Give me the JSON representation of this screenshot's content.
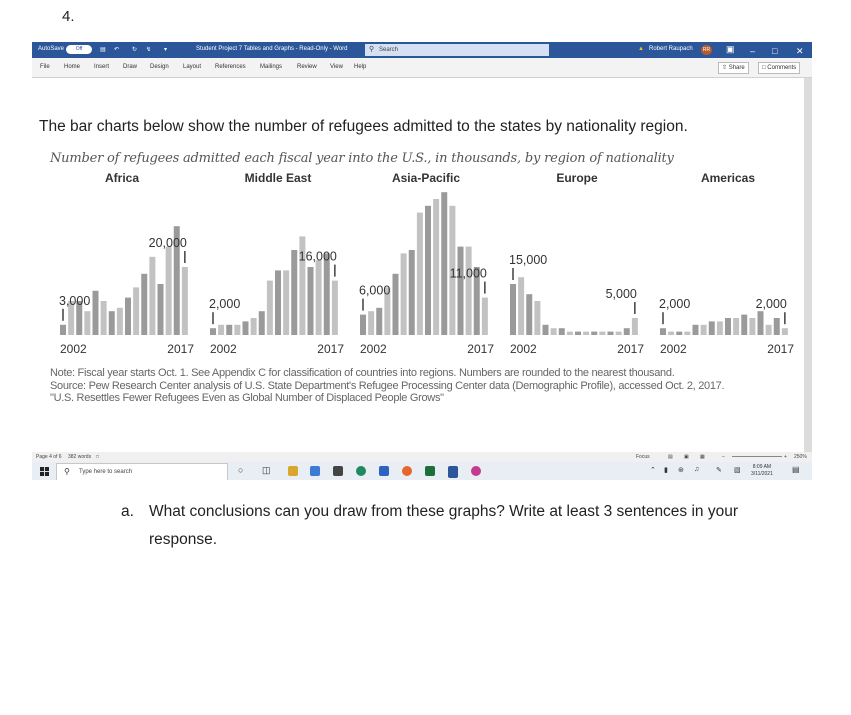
{
  "question_number": "4.",
  "word_window": {
    "title_bar": {
      "autosave_label": "AutoSave",
      "autosave_state": "Off",
      "document_title": "Student Project 7 Tables and Graphs  -  Read-Only  -  Word",
      "search_placeholder": "Search",
      "user_name": "Robert Raupach",
      "user_initials": "RR",
      "accent_color": "#2b579a"
    },
    "ribbon_tabs": [
      "File",
      "Home",
      "Insert",
      "Draw",
      "Design",
      "Layout",
      "References",
      "Mailings",
      "Review",
      "View",
      "Help"
    ],
    "share_label": "Share",
    "comments_label": "Comments",
    "document": {
      "lead_sentence": "The bar charts below show the number of refugees admitted to the states by nationality region.",
      "figure_title": "Number of refugees admitted each fiscal year into the U.S., in thousands, by region of nationality",
      "note": "Note: Fiscal year starts Oct. 1. See Appendix C for classification of countries into regions. Numbers are rounded to the nearest thousand.",
      "source": "Source: Pew Research Center analysis of U.S. State Department's Refugee Processing Center data (Demographic Profile), accessed Oct. 2, 2017.",
      "caption": "\"U.S. Resettles Fewer Refugees Even as Global Number of Displaced People Grows\""
    },
    "status_bar": {
      "page": "Page 4 of 6",
      "words": "382 words",
      "focus_label": "Focus",
      "zoom": "250%"
    },
    "taskbar": {
      "search_placeholder": "Type here to search",
      "time": "8:09 AM",
      "date": "3/11/2021"
    }
  },
  "chart_data": {
    "type": "bar",
    "title": "Number of refugees admitted each fiscal year into the U.S., in thousands, by region of nationality",
    "x_range": [
      "2002",
      "2017"
    ],
    "panels": [
      {
        "region": "Africa",
        "start_label": "3,000",
        "end_label": "20,000",
        "values": [
          3,
          10,
          10,
          7,
          13,
          10,
          7,
          8,
          11,
          14,
          18,
          23,
          15,
          26,
          32,
          20
        ]
      },
      {
        "region": "Middle East",
        "start_label": "2,000",
        "end_label": "16,000",
        "values": [
          2,
          3,
          3,
          3,
          4,
          5,
          7,
          16,
          19,
          19,
          25,
          29,
          20,
          22,
          24,
          16
        ]
      },
      {
        "region": "Asia-Pacific",
        "start_label": "6,000",
        "end_label": "11,000",
        "values": [
          6,
          7,
          8,
          14,
          18,
          24,
          25,
          36,
          38,
          40,
          42,
          38,
          26,
          26,
          20,
          11
        ]
      },
      {
        "region": "Europe",
        "start_label": "15,000",
        "end_label": "5,000",
        "values": [
          15,
          17,
          12,
          10,
          3,
          2,
          2,
          1,
          1,
          1,
          1,
          1,
          1,
          1,
          2,
          5
        ]
      },
      {
        "region": "Americas",
        "start_label": "2,000",
        "end_label": "2,000",
        "values": [
          2,
          1,
          1,
          1,
          3,
          3,
          4,
          4,
          5,
          5,
          6,
          5,
          7,
          3,
          5,
          2
        ]
      }
    ],
    "unit": "thousands",
    "bar_color": "#9a9a9a",
    "secondary_bar_color": "#c2c2c2"
  },
  "question": {
    "letter": "a.",
    "text": "What conclusions can you draw from these graphs? Write at least 3 sentences in your response."
  }
}
